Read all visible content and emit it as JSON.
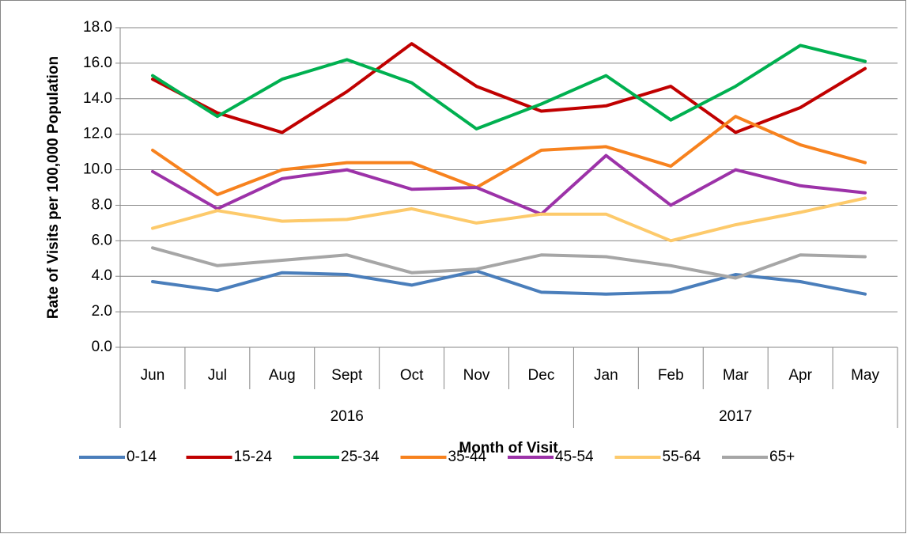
{
  "chart_data": {
    "type": "line",
    "x_label": "Month of Visit",
    "y_label": "Rate of Visits per 100,000 Population",
    "categories": [
      "Jun",
      "Jul",
      "Aug",
      "Sept",
      "Oct",
      "Nov",
      "Dec",
      "Jan",
      "Feb",
      "Mar",
      "Apr",
      "May"
    ],
    "groups": [
      {
        "label": "2016",
        "count": 7
      },
      {
        "label": "2017",
        "count": 5
      }
    ],
    "ylim": [
      0,
      18
    ],
    "yticks": [
      {
        "value": 0,
        "label": "0.0"
      },
      {
        "value": 2,
        "label": "2.0"
      },
      {
        "value": 4,
        "label": "4.0"
      },
      {
        "value": 6,
        "label": "6.0"
      },
      {
        "value": 8,
        "label": "8.0"
      },
      {
        "value": 10,
        "label": "10.0"
      },
      {
        "value": 12,
        "label": "12.0"
      },
      {
        "value": 14,
        "label": "14.0"
      },
      {
        "value": 16,
        "label": "16.0"
      },
      {
        "value": 18,
        "label": "18.0"
      }
    ],
    "grid": true,
    "legend": "bottom",
    "series": [
      {
        "name": "0-14",
        "color": "#4a7ebb",
        "values": [
          3.7,
          3.2,
          4.2,
          4.1,
          3.5,
          4.3,
          3.1,
          3.0,
          3.1,
          4.1,
          3.7,
          3.0
        ]
      },
      {
        "name": "15-24",
        "color": "#c00000",
        "values": [
          15.1,
          13.2,
          12.1,
          14.4,
          17.1,
          14.7,
          13.3,
          13.6,
          14.7,
          12.1,
          13.5,
          15.7
        ]
      },
      {
        "name": "25-34",
        "color": "#00b050",
        "values": [
          15.3,
          13.0,
          15.1,
          16.2,
          14.9,
          12.3,
          13.7,
          15.3,
          12.8,
          14.7,
          17.0,
          16.1
        ]
      },
      {
        "name": "35-44",
        "color": "#f7821e",
        "values": [
          11.1,
          8.6,
          10.0,
          10.4,
          10.4,
          9.0,
          11.1,
          11.3,
          10.2,
          13.0,
          11.4,
          10.4
        ]
      },
      {
        "name": "45-54",
        "color": "#9c32a8",
        "values": [
          9.9,
          7.8,
          9.5,
          10.0,
          8.9,
          9.0,
          7.5,
          10.8,
          8.0,
          10.0,
          9.1,
          8.7
        ]
      },
      {
        "name": "55-64",
        "color": "#fdca6b",
        "values": [
          6.7,
          7.7,
          7.1,
          7.2,
          7.8,
          7.0,
          7.5,
          7.5,
          6.0,
          6.9,
          7.6,
          8.4
        ]
      },
      {
        "name": "65+",
        "color": "#a6a6a6",
        "values": [
          5.6,
          4.6,
          4.9,
          5.2,
          4.2,
          4.4,
          5.2,
          5.1,
          4.6,
          3.9,
          5.2,
          5.1
        ]
      }
    ]
  }
}
